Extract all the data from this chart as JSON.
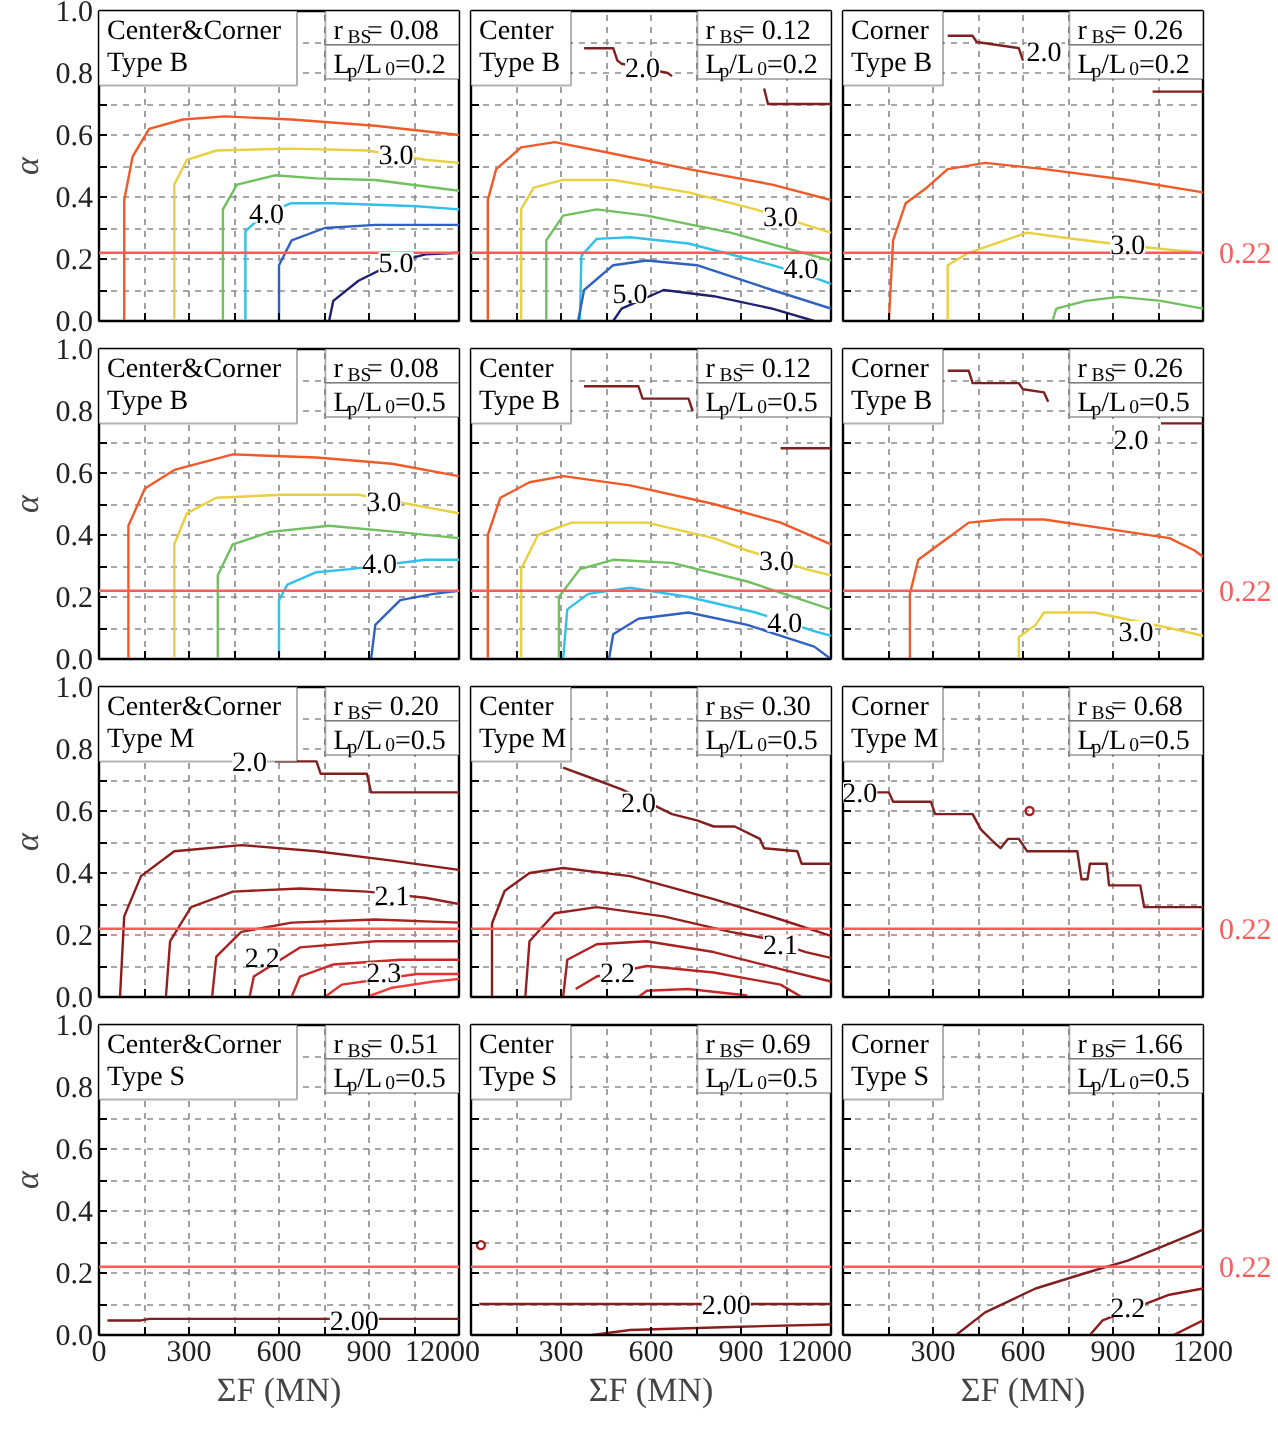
{
  "chart_data": [
    {
      "type": "line",
      "xlim": [
        0,
        1200
      ],
      "ylim": [
        0,
        1
      ],
      "xticks": [
        0,
        {
          "value": 150,
          "label": null
        },
        300,
        {
          "value": 450,
          "label": null
        },
        600,
        {
          "value": 750,
          "label": null
        },
        900,
        {
          "value": 1050,
          "label": null
        },
        1200
      ],
      "yticks": [
        {
          "value": 0,
          "label": "0.0"
        },
        {
          "value": 0.1,
          "label": null
        },
        0.2,
        {
          "value": 0.3,
          "label": null
        },
        0.4,
        {
          "value": 0.5,
          "label": null
        },
        0.6,
        {
          "value": 0.7,
          "label": null
        },
        0.8,
        {
          "value": 0.9,
          "label": null
        },
        {
          "value": 1,
          "label": "1.0"
        }
      ],
      "tick_labels": "y",
      "grid": true,
      "ylabel": "α",
      "series": [
        {
          "color": "#f05a28",
          "x": [
            84,
            84,
            112,
            167,
            279,
            419,
            642,
            921,
            1200
          ],
          "values": [
            0,
            0.39,
            0.53,
            0.62,
            0.65,
            0.66,
            0.65,
            0.63,
            0.6
          ]
        },
        {
          "color": "#e8d040",
          "x": [
            251,
            251,
            293,
            391,
            642,
            893,
            1088,
            1200
          ],
          "values": [
            0,
            0.44,
            0.52,
            0.55,
            0.556,
            0.55,
            0.52,
            0.51
          ]
        },
        {
          "color": "#70c060",
          "x": [
            413,
            413,
            460,
            586,
            725,
            921,
            1200
          ],
          "values": [
            0,
            0.36,
            0.44,
            0.47,
            0.46,
            0.455,
            0.42
          ]
        },
        {
          "color": "#30c0e8",
          "x": [
            488,
            488,
            558,
            642,
            781,
            1060,
            1200
          ],
          "values": [
            0,
            0.29,
            0.35,
            0.38,
            0.38,
            0.37,
            0.36
          ]
        },
        {
          "color": "#3060c0",
          "x": [
            600,
            600,
            642,
            753,
            921,
            1200
          ],
          "values": [
            0,
            0.18,
            0.26,
            0.3,
            0.31,
            0.31
          ]
        },
        {
          "color": "#202070",
          "x": [
            767,
            781,
            865,
            990,
            1088,
            1200
          ],
          "values": [
            0,
            0.065,
            0.13,
            0.19,
            0.215,
            0.22
          ]
        }
      ],
      "ref_lines": [
        {
          "axis": "y",
          "value": 0.22,
          "color": "#ff5a5a"
        }
      ],
      "annotations": [
        "Center&Corner\nType B",
        "r$_{BS}$= 0.08",
        "L$_{p}$/L$_{0}$=0.2",
        {
          "text": "3.0",
          "x": 990,
          "y": 0.54
        },
        {
          "text": "4.0",
          "x": 558,
          "y": 0.35
        },
        {
          "text": "5.0",
          "x": 990,
          "y": 0.19
        }
      ]
    },
    {
      "type": "line",
      "xlim": [
        0,
        1200
      ],
      "ylim": [
        0,
        1
      ],
      "xticks": [
        0,
        {
          "value": 150,
          "label": null
        },
        300,
        {
          "value": 450,
          "label": null
        },
        600,
        {
          "value": 750,
          "label": null
        },
        900,
        {
          "value": 1050,
          "label": null
        },
        1200
      ],
      "yticks": [
        0,
        {
          "value": 0.1,
          "label": null
        },
        0.2,
        {
          "value": 0.3,
          "label": null
        },
        0.4,
        {
          "value": 0.5,
          "label": null
        },
        0.6,
        {
          "value": 0.7,
          "label": null
        },
        0.8,
        {
          "value": 0.9,
          "label": null
        },
        1
      ],
      "tick_labels": false,
      "grid": true,
      "series": [
        {
          "color": "#7f1f1f",
          "x": [
            377,
            474,
            488,
            502,
            656,
            670,
            900,
            977,
            990,
            1200
          ],
          "values": [
            0.88,
            0.88,
            0.84,
            0.83,
            0.8,
            0.79,
            null,
            0.75,
            0.7,
            0.7
          ]
        },
        {
          "color": "#f05a28",
          "x": [
            56,
            56,
            84,
            167,
            279,
            446,
            725,
            1004,
            1200
          ],
          "values": [
            0,
            0.39,
            0.49,
            0.56,
            0.577,
            0.545,
            0.49,
            0.44,
            0.39
          ]
        },
        {
          "color": "#e8d040",
          "x": [
            167,
            167,
            209,
            307,
            474,
            725,
            949,
            1116,
            1200
          ],
          "values": [
            0,
            0.36,
            0.43,
            0.455,
            0.455,
            0.415,
            0.36,
            0.31,
            0.285
          ]
        },
        {
          "color": "#70c060",
          "x": [
            251,
            251,
            307,
            419,
            586,
            865,
            1200
          ],
          "values": [
            0,
            0.26,
            0.34,
            0.36,
            0.34,
            0.285,
            0.195
          ]
        },
        {
          "color": "#30c0e8",
          "x": [
            363,
            368,
            419,
            530,
            725,
            1004,
            1144,
            1200
          ],
          "values": [
            0,
            0.21,
            0.265,
            0.27,
            0.25,
            0.18,
            0.14,
            0.12
          ]
        },
        {
          "color": "#3060c0",
          "x": [
            357,
            377,
            474,
            586,
            753,
            1004,
            1200
          ],
          "values": [
            0,
            0.1,
            0.18,
            0.195,
            0.18,
            0.1,
            0.04
          ]
        },
        {
          "color": "#202070",
          "x": [
            474,
            502,
            642,
            809,
            1004,
            1144
          ],
          "values": [
            0,
            0.04,
            0.1,
            0.08,
            0.04,
            0
          ]
        }
      ],
      "ref_lines": [
        {
          "axis": "y",
          "value": 0.22,
          "color": "#ff5a5a"
        }
      ],
      "annotations": [
        "Center\nType B",
        "r$_{BS}$= 0.12",
        "L$_{p}$/L$_{0}$=0.2",
        {
          "text": "2.0",
          "x": 572,
          "y": 0.82
        },
        {
          "text": "3.0",
          "x": 1032,
          "y": 0.34
        },
        {
          "text": "4.0",
          "x": 1100,
          "y": 0.17
        },
        {
          "text": "5.0",
          "x": 530,
          "y": 0.09
        }
      ]
    },
    {
      "type": "line",
      "xlim": [
        0,
        1200
      ],
      "ylim": [
        0,
        1
      ],
      "xticks": [
        0,
        {
          "value": 150,
          "label": null
        },
        300,
        {
          "value": 450,
          "label": null
        },
        600,
        {
          "value": 750,
          "label": null
        },
        900,
        {
          "value": 1050,
          "label": null
        },
        1200
      ],
      "yticks": [
        0,
        {
          "value": 0.1,
          "label": null
        },
        0.2,
        {
          "value": 0.3,
          "label": null
        },
        0.4,
        {
          "value": 0.5,
          "label": null
        },
        0.6,
        {
          "value": 0.7,
          "label": null
        },
        0.8,
        {
          "value": 0.9,
          "label": null
        },
        1
      ],
      "tick_labels": false,
      "grid": true,
      "series": [
        {
          "color": "#7f1f1f",
          "x": [
            349,
            432,
            446,
            586,
            600,
            800,
            1032,
            1200
          ],
          "values": [
            0.92,
            0.92,
            0.9,
            0.88,
            0.84,
            null,
            0.74,
            0.74
          ]
        },
        {
          "color": "#f05a28",
          "x": [
            153,
            167,
            209,
            279,
            349,
            474,
            670,
            949,
            1200
          ],
          "values": [
            0,
            0.26,
            0.38,
            0.43,
            0.49,
            0.51,
            0.49,
            0.455,
            0.415
          ]
        },
        {
          "color": "#e8d040",
          "x": [
            349,
            349,
            419,
            614,
            725,
            893,
            1088,
            1200
          ],
          "values": [
            0,
            0.18,
            0.22,
            0.285,
            0.27,
            0.25,
            0.23,
            0.22
          ]
        },
        {
          "color": "#70c060",
          "x": [
            698,
            711,
            809,
            921,
            1060,
            1200
          ],
          "values": [
            0,
            0.04,
            0.065,
            0.078,
            0.065,
            0.04
          ]
        }
      ],
      "ref_lines": [
        {
          "axis": "y",
          "value": 0.22,
          "label": "0.22",
          "color": "#ff5a5a"
        }
      ],
      "annotations": [
        "Corner\nType B",
        "r$_{BS}$= 0.26",
        "L$_{p}$/L$_{0}$=0.2",
        {
          "text": "2.0",
          "x": 670,
          "y": 0.87
        },
        {
          "text": "3.0",
          "x": 949,
          "y": 0.25
        }
      ]
    },
    {
      "type": "line",
      "xlim": [
        0,
        1200
      ],
      "ylim": [
        0,
        1
      ],
      "xticks": [
        0,
        {
          "value": 150,
          "label": null
        },
        300,
        {
          "value": 450,
          "label": null
        },
        600,
        {
          "value": 750,
          "label": null
        },
        900,
        {
          "value": 1050,
          "label": null
        },
        1200
      ],
      "yticks": [
        {
          "value": 0,
          "label": "0.0"
        },
        {
          "value": 0.1,
          "label": null
        },
        0.2,
        {
          "value": 0.3,
          "label": null
        },
        0.4,
        {
          "value": 0.5,
          "label": null
        },
        0.6,
        {
          "value": 0.7,
          "label": null
        },
        0.8,
        {
          "value": 0.9,
          "label": null
        },
        {
          "value": 1,
          "label": "1.0"
        }
      ],
      "tick_labels": "y",
      "grid": true,
      "ylabel": "α",
      "series": [
        {
          "color": "#f05a28",
          "x": [
            98,
            98,
            153,
            251,
            446,
            725,
            977,
            1200
          ],
          "values": [
            0,
            0.43,
            0.55,
            0.61,
            0.66,
            0.65,
            0.63,
            0.59
          ]
        },
        {
          "color": "#e8d040",
          "x": [
            251,
            251,
            293,
            391,
            614,
            865,
            1088,
            1200
          ],
          "values": [
            0,
            0.37,
            0.47,
            0.52,
            0.53,
            0.53,
            0.49,
            0.47
          ]
        },
        {
          "color": "#70c060",
          "x": [
            396,
            396,
            446,
            572,
            767,
            991,
            1200
          ],
          "values": [
            0,
            0.27,
            0.37,
            0.41,
            0.43,
            0.41,
            0.39
          ]
        },
        {
          "color": "#30c0e8",
          "x": [
            600,
            600,
            628,
            725,
            837,
            1088,
            1200
          ],
          "values": [
            0,
            0.19,
            0.24,
            0.28,
            0.29,
            0.32,
            0.32
          ]
        },
        {
          "color": "#3060c0",
          "x": [
            907,
            921,
            1004,
            1116,
            1200
          ],
          "values": [
            0,
            0.11,
            0.19,
            0.21,
            0.22
          ]
        }
      ],
      "ref_lines": [
        {
          "axis": "y",
          "value": 0.22,
          "color": "#ff5a5a"
        }
      ],
      "annotations": [
        "Center&Corner\nType B",
        "r$_{BS}$= 0.08",
        "L$_{p}$/L$_{0}$=0.5",
        {
          "text": "3.0",
          "x": 949,
          "y": 0.51
        },
        {
          "text": "4.0",
          "x": 935,
          "y": 0.31
        }
      ]
    },
    {
      "type": "line",
      "xlim": [
        0,
        1200
      ],
      "ylim": [
        0,
        1
      ],
      "xticks": [
        0,
        {
          "value": 150,
          "label": null
        },
        300,
        {
          "value": 450,
          "label": null
        },
        600,
        {
          "value": 750,
          "label": null
        },
        900,
        {
          "value": 1050,
          "label": null
        },
        1200
      ],
      "yticks": [
        0,
        {
          "value": 0.1,
          "label": null
        },
        0.2,
        {
          "value": 0.3,
          "label": null
        },
        0.4,
        {
          "value": 0.5,
          "label": null
        },
        0.6,
        {
          "value": 0.7,
          "label": null
        },
        0.8,
        {
          "value": 0.9,
          "label": null
        },
        1
      ],
      "tick_labels": false,
      "grid": true,
      "series": [
        {
          "color": "#7f1f1f",
          "x": [
            377,
            558,
            572,
            725,
            739,
            900,
            1032,
            1200
          ],
          "values": [
            0.88,
            0.88,
            0.84,
            0.84,
            0.8,
            null,
            0.68,
            0.68
          ]
        },
        {
          "color": "#f05a28",
          "x": [
            56,
            56,
            98,
            195,
            307,
            530,
            809,
            1032,
            1200
          ],
          "values": [
            0,
            0.4,
            0.52,
            0.57,
            0.59,
            0.56,
            0.5,
            0.44,
            0.37
          ]
        },
        {
          "color": "#e8d040",
          "x": [
            167,
            167,
            223,
            335,
            586,
            809,
            921,
            1116,
            1200
          ],
          "values": [
            0,
            0.29,
            0.4,
            0.44,
            0.44,
            0.39,
            0.35,
            0.29,
            0.27
          ]
        },
        {
          "color": "#70c060",
          "x": [
            293,
            293,
            363,
            474,
            670,
            921,
            1200
          ],
          "values": [
            0,
            0.2,
            0.29,
            0.32,
            0.31,
            0.25,
            0.16
          ]
        },
        {
          "color": "#30c0e8",
          "x": [
            307,
            321,
            391,
            530,
            725,
            949,
            1144,
            1200
          ],
          "values": [
            0,
            0.16,
            0.21,
            0.23,
            0.2,
            0.15,
            0.09,
            0.075
          ]
        },
        {
          "color": "#3060c0",
          "x": [
            460,
            474,
            558,
            725,
            921,
            1144,
            1200
          ],
          "values": [
            0,
            0.08,
            0.13,
            0.15,
            0.11,
            0.04,
            0
          ]
        }
      ],
      "ref_lines": [
        {
          "axis": "y",
          "value": 0.22,
          "color": "#ff5a5a"
        }
      ],
      "annotations": [
        "Center\nType B",
        "r$_{BS}$= 0.12",
        "L$_{p}$/L$_{0}$=0.5",
        {
          "text": "3.0",
          "x": 1018,
          "y": 0.32
        },
        {
          "text": "4.0",
          "x": 1046,
          "y": 0.12
        }
      ]
    },
    {
      "type": "line",
      "xlim": [
        0,
        1200
      ],
      "ylim": [
        0,
        1
      ],
      "xticks": [
        0,
        {
          "value": 150,
          "label": null
        },
        300,
        {
          "value": 450,
          "label": null
        },
        600,
        {
          "value": 750,
          "label": null
        },
        900,
        {
          "value": 1050,
          "label": null
        },
        1200
      ],
      "yticks": [
        0,
        {
          "value": 0.1,
          "label": null
        },
        0.2,
        {
          "value": 0.3,
          "label": null
        },
        0.4,
        {
          "value": 0.5,
          "label": null
        },
        0.6,
        {
          "value": 0.7,
          "label": null
        },
        0.8,
        {
          "value": 0.9,
          "label": null
        },
        1
      ],
      "tick_labels": false,
      "grid": true,
      "series": [
        {
          "color": "#7f1f1f",
          "x": [
            349,
            419,
            432,
            586,
            600,
            670,
            684,
            850,
            1060,
            1200
          ],
          "values": [
            0.93,
            0.93,
            0.89,
            0.89,
            0.87,
            0.86,
            0.83,
            null,
            0.76,
            0.76
          ]
        },
        {
          "color": "#f05a28",
          "x": [
            223,
            223,
            251,
            321,
            419,
            530,
            670,
            949,
            1088,
            1172,
            1200
          ],
          "values": [
            0,
            0.21,
            0.32,
            0.37,
            0.44,
            0.45,
            0.45,
            0.41,
            0.39,
            0.35,
            0.33
          ]
        },
        {
          "color": "#e8d040",
          "x": [
            586,
            586,
            642,
            670,
            837,
            1088,
            1200
          ],
          "values": [
            0,
            0.07,
            0.11,
            0.15,
            0.15,
            0.1,
            0.075
          ]
        }
      ],
      "ref_lines": [
        {
          "axis": "y",
          "value": 0.22,
          "label": "0.22",
          "color": "#ff5a5a"
        }
      ],
      "annotations": [
        "Corner\nType B",
        "r$_{BS}$= 0.26",
        "L$_{p}$/L$_{0}$=0.5",
        {
          "text": "2.0",
          "x": 960,
          "y": 0.71
        },
        {
          "text": "3.0",
          "x": 977,
          "y": 0.09
        }
      ]
    },
    {
      "type": "line",
      "xlim": [
        0,
        1200
      ],
      "ylim": [
        0,
        1
      ],
      "xticks": [
        0,
        {
          "value": 150,
          "label": null
        },
        300,
        {
          "value": 450,
          "label": null
        },
        600,
        {
          "value": 750,
          "label": null
        },
        900,
        {
          "value": 1050,
          "label": null
        },
        1200
      ],
      "yticks": [
        {
          "value": 0,
          "label": "0.0"
        },
        {
          "value": 0.1,
          "label": null
        },
        0.2,
        {
          "value": 0.3,
          "label": null
        },
        0.4,
        {
          "value": 0.5,
          "label": null
        },
        0.6,
        {
          "value": 0.7,
          "label": null
        },
        0.8,
        {
          "value": 0.9,
          "label": null
        },
        {
          "value": 1,
          "label": "1.0"
        }
      ],
      "tick_labels": "y",
      "grid": true,
      "ylabel": "α",
      "series": [
        {
          "color": "#7f1f1f",
          "x": [
            586,
            725,
            739,
            893,
            907,
            1200
          ],
          "values": [
            0.76,
            0.76,
            0.72,
            0.72,
            0.66,
            0.66
          ]
        },
        {
          "color": "#8c1c1c",
          "x": [
            70,
            84,
            140,
            251,
            474,
            725,
            977,
            1200
          ],
          "values": [
            0,
            0.26,
            0.39,
            0.47,
            0.49,
            0.47,
            0.44,
            0.41
          ]
        },
        {
          "color": "#962020",
          "x": [
            223,
            237,
            307,
            446,
            670,
            893,
            1088,
            1200
          ],
          "values": [
            0,
            0.18,
            0.29,
            0.34,
            0.35,
            0.34,
            0.32,
            0.3
          ]
        },
        {
          "color": "#a82020",
          "x": [
            377,
            391,
            474,
            642,
            921,
            1200
          ],
          "values": [
            0,
            0.13,
            0.21,
            0.24,
            0.25,
            0.24
          ]
        },
        {
          "color": "#b82424",
          "x": [
            502,
            516,
            670,
            921,
            1200
          ],
          "values": [
            0,
            0.066,
            0.16,
            0.18,
            0.18
          ]
        },
        {
          "color": "#cc2828",
          "x": [
            642,
            670,
            781,
            1004,
            1200
          ],
          "values": [
            0,
            0.066,
            0.105,
            0.12,
            0.12
          ]
        },
        {
          "color": "#e03030",
          "x": [
            753,
            809,
            1060,
            1200
          ],
          "values": [
            0,
            0.04,
            0.074,
            0.074
          ]
        },
        {
          "color": "#f04040",
          "x": [
            893,
            977,
            1116,
            1200
          ],
          "values": [
            0,
            0.03,
            0.05,
            0.058
          ]
        }
      ],
      "ref_lines": [
        {
          "axis": "y",
          "value": 0.22,
          "color": "#ff5a5a"
        }
      ],
      "annotations": [
        "Center&Corner\nType M",
        "r$_{BS}$= 0.20",
        "L$_{p}$/L$_{0}$=0.5",
        {
          "text": "2.0",
          "x": 502,
          "y": 0.76
        },
        {
          "text": "2.1",
          "x": 977,
          "y": 0.33
        },
        {
          "text": "2.2",
          "x": 544,
          "y": 0.13
        },
        {
          "text": "2.3",
          "x": 949,
          "y": 0.08
        }
      ]
    },
    {
      "type": "line",
      "xlim": [
        0,
        1200
      ],
      "ylim": [
        0,
        1
      ],
      "xticks": [
        0,
        {
          "value": 150,
          "label": null
        },
        300,
        {
          "value": 450,
          "label": null
        },
        600,
        {
          "value": 750,
          "label": null
        },
        900,
        {
          "value": 1050,
          "label": null
        },
        1200
      ],
      "yticks": [
        0,
        {
          "value": 0.1,
          "label": null
        },
        0.2,
        {
          "value": 0.3,
          "label": null
        },
        0.4,
        {
          "value": 0.5,
          "label": null
        },
        0.6,
        {
          "value": 0.7,
          "label": null
        },
        0.8,
        {
          "value": 0.9,
          "label": null
        },
        1
      ],
      "tick_labels": false,
      "grid": true,
      "series": [
        {
          "color": "#7f1f1f",
          "x": [
            307,
            419,
            502,
            670,
            753,
            809,
            879,
            963,
            977,
            1088,
            1102,
            1200
          ],
          "values": [
            0.74,
            0.7,
            0.67,
            0.59,
            0.57,
            0.55,
            0.55,
            0.51,
            0.48,
            0.47,
            0.43,
            0.43
          ]
        },
        {
          "color": "#8c1c1c",
          "x": [
            70,
            70,
            112,
            195,
            307,
            530,
            809,
            1032,
            1200
          ],
          "values": [
            0,
            0.237,
            0.342,
            0.4,
            0.416,
            0.39,
            0.316,
            0.25,
            0.197
          ]
        },
        {
          "color": "#962020",
          "x": [
            181,
            195,
            279,
            419,
            642,
            865,
            977,
            1116,
            1200
          ],
          "values": [
            0,
            0.18,
            0.27,
            0.29,
            0.26,
            0.21,
            0.19,
            0.145,
            0.126
          ]
        },
        {
          "color": "#a82020",
          "x": [
            307,
            321,
            419,
            586,
            809,
            1032,
            1200
          ],
          "values": [
            0,
            0.12,
            0.17,
            0.18,
            0.145,
            0.09,
            0.05
          ]
        },
        {
          "color": "#b82424",
          "x": [
            349,
            419,
            586,
            809,
            1032,
            1102
          ],
          "values": [
            0.026,
            0.066,
            0.1,
            0.079,
            0.04,
            0
          ]
        },
        {
          "color": "#cc2828",
          "x": [
            558,
            586,
            725,
            921
          ],
          "values": [
            0,
            0.02,
            0.026,
            0.005
          ]
        }
      ],
      "ref_lines": [
        {
          "axis": "y",
          "value": 0.22,
          "color": "#ff5a5a"
        }
      ],
      "annotations": [
        "Center\nType M",
        "r$_{BS}$= 0.30",
        "L$_{p}$/L$_{0}$=0.5",
        {
          "text": "2.0",
          "x": 558,
          "y": 0.63
        },
        {
          "text": "2.1",
          "x": 1032,
          "y": 0.17
        },
        {
          "text": "2.2",
          "x": 488,
          "y": 0.08
        }
      ]
    },
    {
      "type": "line",
      "xlim": [
        0,
        1200
      ],
      "ylim": [
        0,
        1
      ],
      "xticks": [
        0,
        {
          "value": 150,
          "label": null
        },
        300,
        {
          "value": 450,
          "label": null
        },
        600,
        {
          "value": 750,
          "label": null
        },
        900,
        {
          "value": 1050,
          "label": null
        },
        1200
      ],
      "yticks": [
        0,
        {
          "value": 0.1,
          "label": null
        },
        0.2,
        {
          "value": 0.3,
          "label": null
        },
        0.4,
        {
          "value": 0.5,
          "label": null
        },
        0.6,
        {
          "value": 0.7,
          "label": null
        },
        0.8,
        {
          "value": 0.9,
          "label": null
        },
        1
      ],
      "tick_labels": false,
      "grid": true,
      "series": [
        {
          "color": "#7f1f1f",
          "x": [
            112,
            153,
            167,
            293,
            307,
            432,
            460,
            502,
            525,
            550,
            586,
            614,
            781,
            795,
            815,
            823,
            879,
            887,
            991,
            1004,
            1200
          ],
          "values": [
            0.66,
            0.66,
            0.63,
            0.63,
            0.59,
            0.59,
            0.54,
            0.5,
            0.48,
            0.51,
            0.51,
            0.47,
            0.47,
            0.38,
            0.38,
            0.43,
            0.43,
            0.36,
            0.36,
            0.29,
            0.29
          ]
        },
        {
          "type": "scatter",
          "marker": "circle",
          "color": "#a82020",
          "x": [
            622
          ],
          "values": [
            0.6
          ]
        }
      ],
      "ref_lines": [
        {
          "axis": "y",
          "value": 0.22,
          "label": "0.22",
          "color": "#ff5a5a"
        }
      ],
      "annotations": [
        "Corner\nType M",
        "r$_{BS}$= 0.68",
        "L$_{p}$/L$_{0}$=0.5",
        {
          "text": "2.0",
          "x": 56,
          "y": 0.66
        }
      ]
    },
    {
      "type": "line",
      "xlim": [
        0,
        1200
      ],
      "ylim": [
        0,
        1
      ],
      "xticks": [
        0,
        {
          "value": 150,
          "label": null
        },
        300,
        {
          "value": 450,
          "label": null
        },
        600,
        {
          "value": 750,
          "label": null
        },
        900,
        {
          "value": 1050,
          "label": null
        },
        1200
      ],
      "yticks": [
        {
          "value": 0,
          "label": "0.0"
        },
        {
          "value": 0.1,
          "label": null
        },
        0.2,
        {
          "value": 0.3,
          "label": null
        },
        0.4,
        {
          "value": 0.5,
          "label": null
        },
        0.6,
        {
          "value": 0.7,
          "label": null
        },
        0.8,
        {
          "value": 0.9,
          "label": null
        },
        {
          "value": 1,
          "label": "1.0"
        }
      ],
      "grid": true,
      "ylabel": "α",
      "xlabel": "ΣF (MN)",
      "series": [
        {
          "color": "#7f1f1f",
          "x": [
            28,
            140,
            167,
            1200
          ],
          "values": [
            0.047,
            0.047,
            0.052,
            0.052
          ]
        }
      ],
      "ref_lines": [
        {
          "axis": "y",
          "value": 0.22,
          "color": "#ff5a5a"
        }
      ],
      "annotations": [
        "Center&Corner\nType S",
        "r$_{BS}$= 0.51",
        "L$_{p}$/L$_{0}$=0.5",
        {
          "text": "2.00",
          "x": 851,
          "y": 0.05
        }
      ]
    },
    {
      "type": "line",
      "xlim": [
        0,
        1200
      ],
      "ylim": [
        0,
        1
      ],
      "xticks": [
        0,
        {
          "value": 150,
          "label": null
        },
        300,
        {
          "value": 450,
          "label": null
        },
        600,
        {
          "value": 750,
          "label": null
        },
        900,
        {
          "value": 1050,
          "label": null
        },
        1200
      ],
      "yticks": [
        0,
        {
          "value": 0.1,
          "label": null
        },
        0.2,
        {
          "value": 0.3,
          "label": null
        },
        0.4,
        {
          "value": 0.5,
          "label": null
        },
        0.6,
        {
          "value": 0.7,
          "label": null
        },
        0.8,
        {
          "value": 0.9,
          "label": null
        },
        1
      ],
      "tick_labels": "x",
      "grid": true,
      "xlabel": "ΣF (MN)",
      "series": [
        {
          "color": "#7f1f1f",
          "x": [
            28,
            1200
          ],
          "values": [
            0.1,
            0.1
          ]
        },
        {
          "color": "#8c1c1c",
          "x": [
            405,
            530,
            865,
            1200
          ],
          "values": [
            0,
            0.016,
            0.026,
            0.034
          ]
        },
        {
          "type": "scatter",
          "marker": "circle",
          "color": "#a82020",
          "x": [
            33
          ],
          "values": [
            0.29
          ]
        }
      ],
      "ref_lines": [
        {
          "axis": "y",
          "value": 0.22,
          "color": "#ff5a5a"
        }
      ],
      "annotations": [
        "Center\nType S",
        "r$_{BS}$= 0.69",
        "L$_{p}$/L$_{0}$=0.5",
        {
          "text": "2.00",
          "x": 851,
          "y": 0.1
        }
      ]
    },
    {
      "type": "line",
      "xlim": [
        0,
        1200
      ],
      "ylim": [
        0,
        1
      ],
      "xticks": [
        0,
        {
          "value": 150,
          "label": null
        },
        300,
        {
          "value": 450,
          "label": null
        },
        600,
        {
          "value": 750,
          "label": null
        },
        900,
        {
          "value": 1050,
          "label": null
        },
        1200
      ],
      "yticks": [
        0,
        {
          "value": 0.1,
          "label": null
        },
        0.2,
        {
          "value": 0.3,
          "label": null
        },
        0.4,
        {
          "value": 0.5,
          "label": null
        },
        0.6,
        {
          "value": 0.7,
          "label": null
        },
        0.8,
        {
          "value": 0.9,
          "label": null
        },
        1
      ],
      "tick_labels": "x",
      "grid": true,
      "xlabel": "ΣF (MN)",
      "series": [
        {
          "color": "#7f1f1f",
          "x": [
            377,
            474,
            642,
            809,
            949,
            1088,
            1200
          ],
          "values": [
            0,
            0.073,
            0.15,
            0.2,
            0.24,
            0.295,
            0.34
          ]
        },
        {
          "color": "#8c1c1c",
          "x": [
            823,
            865,
            1088,
            1200
          ],
          "values": [
            0,
            0.047,
            0.13,
            0.15
          ]
        },
        {
          "color": "#962020",
          "x": [
            1102,
            1200
          ],
          "values": [
            0,
            0.047
          ]
        }
      ],
      "ref_lines": [
        {
          "axis": "y",
          "value": 0.22,
          "label": "0.22",
          "color": "#ff5a5a"
        }
      ],
      "annotations": [
        "Corner\nType S",
        "r$_{BS}$= 1.66",
        "L$_{p}$/L$_{0}$=0.5",
        {
          "text": "2.2",
          "x": 949,
          "y": 0.09
        }
      ]
    }
  ]
}
